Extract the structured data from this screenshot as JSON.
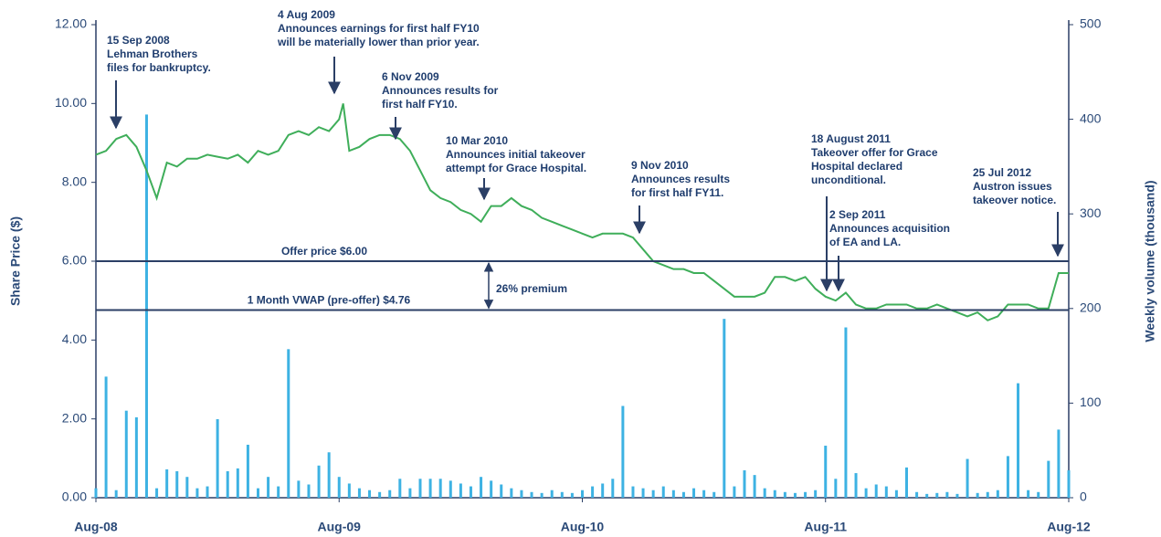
{
  "chart_data": {
    "type": "line",
    "ylabel": "Share Price ($)",
    "y2label": "Weekly volume (thousand)",
    "xlim": [
      0,
      48
    ],
    "xticks": [
      {
        "value": 0,
        "label": "Aug-08"
      },
      {
        "value": 12,
        "label": "Aug-09"
      },
      {
        "value": 24,
        "label": "Aug-10"
      },
      {
        "value": 36,
        "label": "Aug-11"
      },
      {
        "value": 48,
        "label": "Aug-12"
      }
    ],
    "ylim": [
      0,
      12
    ],
    "yticks": [
      {
        "value": 0,
        "label": "0.00"
      },
      {
        "value": 2,
        "label": "2.00"
      },
      {
        "value": 4,
        "label": "4.00"
      },
      {
        "value": 6,
        "label": "6.00"
      },
      {
        "value": 8,
        "label": "8.00"
      },
      {
        "value": 10,
        "label": "10.00"
      },
      {
        "value": 12,
        "label": "12.00"
      }
    ],
    "y2lim": [
      0,
      500
    ],
    "y2ticks": [
      0,
      100,
      200,
      300,
      400,
      500
    ],
    "series": [
      {
        "color": "#3fae5a",
        "x": [
          0,
          0.5,
          1,
          1.5,
          2,
          2.5,
          3,
          3.5,
          4,
          4.5,
          5,
          5.5,
          6,
          6.5,
          7,
          7.5,
          8,
          8.5,
          9,
          9.5,
          10,
          10.5,
          11,
          11.5,
          12,
          12.2,
          12.5,
          13,
          13.5,
          14,
          14.5,
          15,
          15.5,
          16,
          16.5,
          17,
          17.5,
          18,
          18.5,
          19,
          19.5,
          20,
          20.5,
          21,
          21.5,
          22,
          22.5,
          23,
          23.5,
          24,
          24.5,
          25,
          25.5,
          26,
          26.5,
          27,
          27.5,
          28,
          28.5,
          29,
          29.5,
          30,
          30.5,
          31,
          31.5,
          32,
          32.5,
          33,
          33.5,
          34,
          34.5,
          35,
          35.5,
          36,
          36.5,
          37,
          37.5,
          38,
          38.5,
          39,
          39.5,
          40,
          40.5,
          41,
          41.5,
          42,
          42.5,
          43,
          43.5,
          44,
          44.5,
          45,
          45.5,
          46,
          46.5,
          47,
          47.5,
          48
        ],
        "values": [
          8.7,
          8.8,
          9.1,
          9.2,
          8.9,
          8.3,
          7.6,
          8.5,
          8.4,
          8.6,
          8.6,
          8.7,
          8.65,
          8.6,
          8.7,
          8.5,
          8.8,
          8.7,
          8.8,
          9.2,
          9.3,
          9.2,
          9.4,
          9.3,
          9.6,
          10.0,
          8.8,
          8.9,
          9.1,
          9.2,
          9.2,
          9.1,
          8.8,
          8.3,
          7.8,
          7.6,
          7.5,
          7.3,
          7.2,
          7.0,
          7.4,
          7.4,
          7.6,
          7.4,
          7.3,
          7.1,
          7.0,
          6.9,
          6.8,
          6.7,
          6.6,
          6.7,
          6.7,
          6.7,
          6.6,
          6.3,
          6.0,
          5.9,
          5.8,
          5.8,
          5.7,
          5.7,
          5.5,
          5.3,
          5.1,
          5.1,
          5.1,
          5.2,
          5.6,
          5.6,
          5.5,
          5.6,
          5.3,
          5.1,
          5.0,
          5.2,
          4.9,
          4.8,
          4.8,
          4.9,
          4.9,
          4.9,
          4.8,
          4.8,
          4.9,
          4.8,
          4.7,
          4.6,
          4.7,
          4.5,
          4.6,
          4.9,
          4.9,
          4.9,
          4.8,
          4.8,
          5.7,
          5.7
        ]
      },
      {
        "type": "bar",
        "axis": "y2",
        "color": "#3db2e3",
        "x": [
          0,
          0.5,
          1,
          1.5,
          2,
          2.5,
          3,
          3.5,
          4,
          4.5,
          5,
          5.5,
          6,
          6.5,
          7,
          7.5,
          8,
          8.5,
          9,
          9.5,
          10,
          10.5,
          11,
          11.5,
          12,
          12.5,
          13,
          13.5,
          14,
          14.5,
          15,
          15.5,
          16,
          16.5,
          17,
          17.5,
          18,
          18.5,
          19,
          19.5,
          20,
          20.5,
          21,
          21.5,
          22,
          22.5,
          23,
          23.5,
          24,
          24.5,
          25,
          25.5,
          26,
          26.5,
          27,
          27.5,
          28,
          28.5,
          29,
          29.5,
          30,
          30.5,
          31,
          31.5,
          32,
          32.5,
          33,
          33.5,
          34,
          34.5,
          35,
          35.5,
          36,
          36.5,
          37,
          37.5,
          38,
          38.5,
          39,
          39.5,
          40,
          40.5,
          41,
          41.5,
          42,
          42.5,
          43,
          43.5,
          44,
          44.5,
          45,
          45.5,
          46,
          46.5,
          47,
          47.5,
          48
        ],
        "values": [
          10,
          128,
          8,
          92,
          85,
          405,
          10,
          30,
          28,
          22,
          10,
          12,
          83,
          28,
          31,
          56,
          10,
          22,
          12,
          157,
          18,
          14,
          34,
          48,
          22,
          15,
          10,
          8,
          6,
          8,
          20,
          10,
          20,
          20,
          20,
          18,
          15,
          12,
          22,
          18,
          14,
          10,
          8,
          6,
          5,
          8,
          6,
          5,
          8,
          12,
          15,
          20,
          97,
          12,
          10,
          8,
          12,
          8,
          6,
          10,
          8,
          6,
          189,
          12,
          29,
          24,
          10,
          8,
          6,
          5,
          6,
          8,
          55,
          20,
          180,
          26,
          10,
          14,
          12,
          8,
          32,
          6,
          4,
          5,
          6,
          4,
          41,
          5,
          6,
          8,
          44,
          121,
          8,
          6,
          39,
          72,
          29
        ]
      }
    ],
    "reference_lines": [
      {
        "value": 6.0,
        "label": "Offer price $6.00"
      },
      {
        "value": 4.76,
        "label": "1 Month VWAP (pre-offer) $4.76"
      }
    ],
    "premium_label": "26% premium",
    "annotations": [
      {
        "text": [
          "15 Sep 2008",
          "Lehman Brothers",
          "files for bankruptcy."
        ]
      },
      {
        "text": [
          "4 Aug 2009",
          "Announces earnings for first half FY10",
          "will be materially lower than prior year."
        ]
      },
      {
        "text": [
          "6 Nov 2009",
          "Announces results for",
          "first half FY10."
        ]
      },
      {
        "text": [
          "10 Mar 2010",
          "Announces initial takeover",
          "attempt for Grace Hospital."
        ]
      },
      {
        "text": [
          "9 Nov 2010",
          "Announces results",
          "for first half FY11."
        ]
      },
      {
        "text": [
          "18 August 2011",
          "Takeover offer for Grace",
          "Hospital declared",
          "unconditional."
        ]
      },
      {
        "text": [
          "2 Sep 2011",
          "Announces acquisition",
          "of EA and LA."
        ]
      },
      {
        "text": [
          "25 Jul 2012",
          "Austron issues",
          "takeover notice."
        ]
      }
    ]
  }
}
